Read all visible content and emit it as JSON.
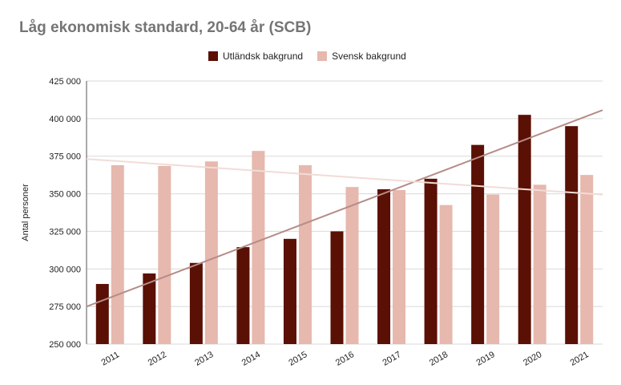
{
  "title": "Låg ekonomisk standard, 20-64 år (SCB)",
  "chart_data": {
    "type": "bar",
    "categories": [
      "2011",
      "2012",
      "2013",
      "2014",
      "2015",
      "2016",
      "2017",
      "2018",
      "2019",
      "2020",
      "2021"
    ],
    "series": [
      {
        "name": "Utländsk bakgrund",
        "color": "#5a1004",
        "values": [
          290000,
          297000,
          304000,
          314500,
          320000,
          325000,
          353000,
          360000,
          382500,
          402500,
          395000
        ]
      },
      {
        "name": "Svensk bakgrund",
        "color": "#e6b8ae",
        "values": [
          369000,
          368500,
          371500,
          378500,
          369000,
          354500,
          352500,
          342500,
          349500,
          356000,
          362500
        ]
      }
    ],
    "trendlines": [
      {
        "series": "Utländsk bakgrund",
        "color": "#b58c87"
      },
      {
        "series": "Svensk bakgrund",
        "color": "#f2dcd7"
      }
    ],
    "ylabel": "Antal personer",
    "xlabel": "",
    "ylim": [
      250000,
      425000
    ],
    "yticks": [
      250000,
      275000,
      300000,
      325000,
      350000,
      375000,
      400000,
      425000
    ],
    "ytick_labels": [
      "250 000",
      "275 000",
      "300 000",
      "325 000",
      "350 000",
      "375 000",
      "400 000",
      "425 000"
    ],
    "grid": true,
    "legend_position": "top"
  }
}
